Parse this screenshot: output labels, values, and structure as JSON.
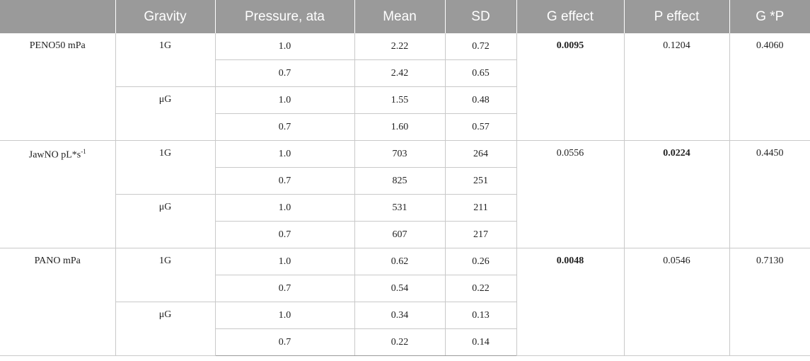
{
  "headers": [
    "",
    "Gravity",
    "Pressure, ata",
    "Mean",
    "SD",
    "G effect",
    "P effect",
    "G *P"
  ],
  "groups": [
    {
      "label": "PENO50 mPa",
      "label_sup": "",
      "g_effect": "0.0095",
      "g_bold": true,
      "p_effect": "0.1204",
      "p_bold": false,
      "gp": "0.4060",
      "gravities": [
        {
          "label": "1G",
          "rows": [
            {
              "pressure": "1.0",
              "mean": "2.22",
              "sd": "0.72"
            },
            {
              "pressure": "0.7",
              "mean": "2.42",
              "sd": "0.65"
            }
          ]
        },
        {
          "label": "μG",
          "rows": [
            {
              "pressure": "1.0",
              "mean": "1.55",
              "sd": "0.48"
            },
            {
              "pressure": "0.7",
              "mean": "1.60",
              "sd": "0.57"
            }
          ]
        }
      ]
    },
    {
      "label": "JawNO pL*s",
      "label_sup": "-1",
      "g_effect": "0.0556",
      "g_bold": false,
      "p_effect": "0.0224",
      "p_bold": true,
      "gp": "0.4450",
      "gravities": [
        {
          "label": "1G",
          "rows": [
            {
              "pressure": "1.0",
              "mean": "703",
              "sd": "264"
            },
            {
              "pressure": "0.7",
              "mean": "825",
              "sd": "251"
            }
          ]
        },
        {
          "label": "μG",
          "rows": [
            {
              "pressure": "1.0",
              "mean": "531",
              "sd": "211"
            },
            {
              "pressure": "0.7",
              "mean": "607",
              "sd": "217"
            }
          ]
        }
      ]
    },
    {
      "label": "PANO mPa",
      "label_sup": "",
      "g_effect": "0.0048",
      "g_bold": true,
      "p_effect": "0.0546",
      "p_bold": false,
      "gp": "0.7130",
      "gravities": [
        {
          "label": "1G",
          "rows": [
            {
              "pressure": "1.0",
              "mean": "0.62",
              "sd": "0.26"
            },
            {
              "pressure": "0.7",
              "mean": "0.54",
              "sd": "0.22"
            }
          ]
        },
        {
          "label": "μG",
          "rows": [
            {
              "pressure": "1.0",
              "mean": "0.34",
              "sd": "0.13"
            },
            {
              "pressure": "0.7",
              "mean": "0.22",
              "sd": "0.14"
            }
          ]
        }
      ]
    }
  ]
}
